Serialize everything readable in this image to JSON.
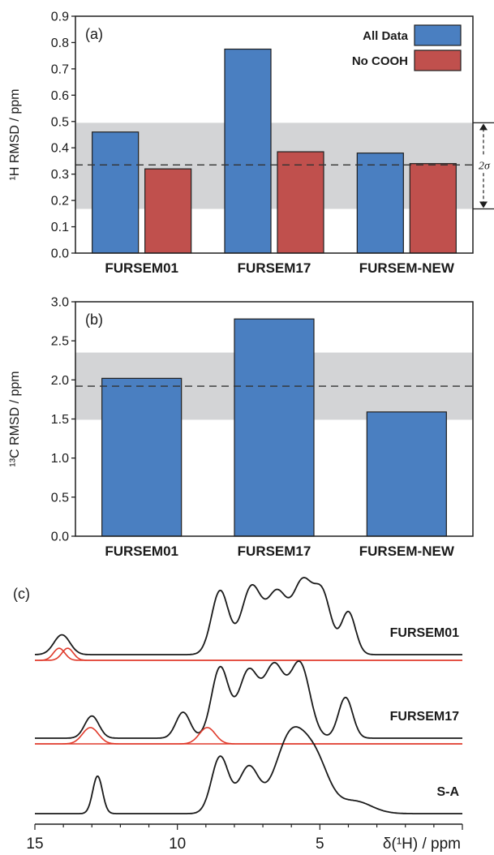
{
  "chart_data": [
    {
      "type": "bar",
      "panel_label": "(a)",
      "ylabel": "¹H RMSD / ppm",
      "categories": [
        "FURSEM01",
        "FURSEM17",
        "FURSEM-NEW"
      ],
      "series": [
        {
          "name": "All Data",
          "values": [
            0.46,
            0.775,
            0.38
          ],
          "color": "#4a7fc1"
        },
        {
          "name": "No COOH",
          "values": [
            0.32,
            0.385,
            0.34
          ],
          "color": "#c0504d"
        }
      ],
      "ylim": [
        0,
        0.9
      ],
      "yticks": [
        "0.0",
        "0.1",
        "0.2",
        "0.3",
        "0.4",
        "0.5",
        "0.6",
        "0.7",
        "0.8",
        "0.9"
      ],
      "reference_line": 0.335,
      "band": [
        0.168,
        0.495
      ],
      "band_label": "2σ",
      "legend_position": "top-right",
      "band_color": "#d3d4d6"
    },
    {
      "type": "bar",
      "panel_label": "(b)",
      "ylabel": "¹³C RMSD / ppm",
      "categories": [
        "FURSEM01",
        "FURSEM17",
        "FURSEM-NEW"
      ],
      "series": [
        {
          "values": [
            2.02,
            2.78,
            1.59
          ],
          "color": "#4a7fc1"
        }
      ],
      "ylim": [
        0,
        3.0
      ],
      "yticks": [
        "0.0",
        "0.5",
        "1.0",
        "1.5",
        "2.0",
        "2.5",
        "3.0"
      ],
      "reference_line": 1.92,
      "band": [
        1.49,
        2.35
      ],
      "band_color": "#d3d4d6"
    },
    {
      "type": "line",
      "panel_label": "(c)",
      "xlabel": "δ(¹H) / ppm",
      "xlim": [
        15,
        0
      ],
      "xticks": [
        "15",
        "10",
        "5"
      ],
      "spectra": [
        {
          "name": "FURSEM01",
          "peaks": [
            [
              14.05,
              0.28,
              0.28
            ],
            [
              8.5,
              0.9,
              0.3
            ],
            [
              7.4,
              0.95,
              0.35
            ],
            [
              6.5,
              0.85,
              0.35
            ],
            [
              5.6,
              1.0,
              0.35
            ],
            [
              4.9,
              0.8,
              0.3
            ],
            [
              4.0,
              0.6,
              0.25
            ]
          ],
          "cooh_peaks": [
            [
              14.15,
              0.17,
              0.2
            ],
            [
              13.85,
              0.17,
              0.2
            ]
          ],
          "color": "#1a1a1a",
          "cooh_color": "#e03a2b"
        },
        {
          "name": "FURSEM17",
          "peaks": [
            [
              13.0,
              0.3,
              0.25
            ],
            [
              9.8,
              0.35,
              0.25
            ],
            [
              8.5,
              0.95,
              0.3
            ],
            [
              7.5,
              0.9,
              0.35
            ],
            [
              6.6,
              0.95,
              0.35
            ],
            [
              5.7,
              1.0,
              0.35
            ],
            [
              4.1,
              0.55,
              0.25
            ]
          ],
          "cooh_peaks": [
            [
              13.05,
              0.22,
              0.28
            ],
            [
              8.95,
              0.22,
              0.28
            ]
          ],
          "color": "#1a1a1a",
          "cooh_color": "#e03a2b"
        },
        {
          "name": "S-A",
          "peaks": [
            [
              12.8,
              0.45,
              0.17
            ],
            [
              8.5,
              0.68,
              0.3
            ],
            [
              7.5,
              0.55,
              0.35
            ],
            [
              6.0,
              0.95,
              0.55
            ],
            [
              5.1,
              0.5,
              0.45
            ],
            [
              3.8,
              0.15,
              0.6
            ]
          ],
          "color": "#1a1a1a"
        }
      ]
    }
  ]
}
